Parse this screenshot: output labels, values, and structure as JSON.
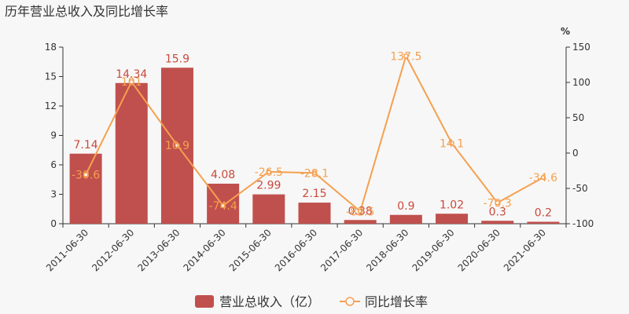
{
  "chart_data": {
    "type": "bar",
    "title": "历年营业总收入及同比增长率",
    "categories": [
      "2011-06-30",
      "2012-06-30",
      "2013-06-30",
      "2014-06-30",
      "2015-06-30",
      "2016-06-30",
      "2017-06-30",
      "2018-06-30",
      "2019-06-30",
      "2020-06-30",
      "2021-06-30"
    ],
    "series": [
      {
        "name": "营业总收入（亿）",
        "type": "bar",
        "axis": "left",
        "color": "#c0504d",
        "values": [
          7.14,
          14.34,
          15.9,
          4.08,
          2.99,
          2.15,
          0.38,
          0.9,
          1.02,
          0.3,
          0.2
        ],
        "labels": [
          "7.14",
          "14.34",
          "15.9",
          "4.08",
          "2.99",
          "2.15",
          "0.38",
          "0.9",
          "1.02",
          "0.3",
          "0.2"
        ]
      },
      {
        "name": "同比增长率",
        "type": "line",
        "axis": "right",
        "color": "#f5a04f",
        "values": [
          -30.6,
          101,
          10.9,
          -74.4,
          -26.5,
          -28.1,
          -82.5,
          137.5,
          14.1,
          -70.3,
          -34.6
        ],
        "labels": [
          "-30.6",
          "101",
          "10.9",
          "-74.4",
          "-26.5",
          "-28.1",
          "-82.5",
          "137.5",
          "14.1",
          "-70.3",
          "-34.6"
        ]
      }
    ],
    "y_left": {
      "min": 0,
      "max": 18,
      "ticks": [
        "0",
        "3",
        "6",
        "9",
        "12",
        "15",
        "18"
      ]
    },
    "y_right": {
      "min": -100,
      "max": 150,
      "unit": "%",
      "ticks": [
        "-100",
        "-50",
        "0",
        "50",
        "100",
        "150"
      ]
    },
    "grid": false,
    "legend_position": "bottom-center"
  }
}
